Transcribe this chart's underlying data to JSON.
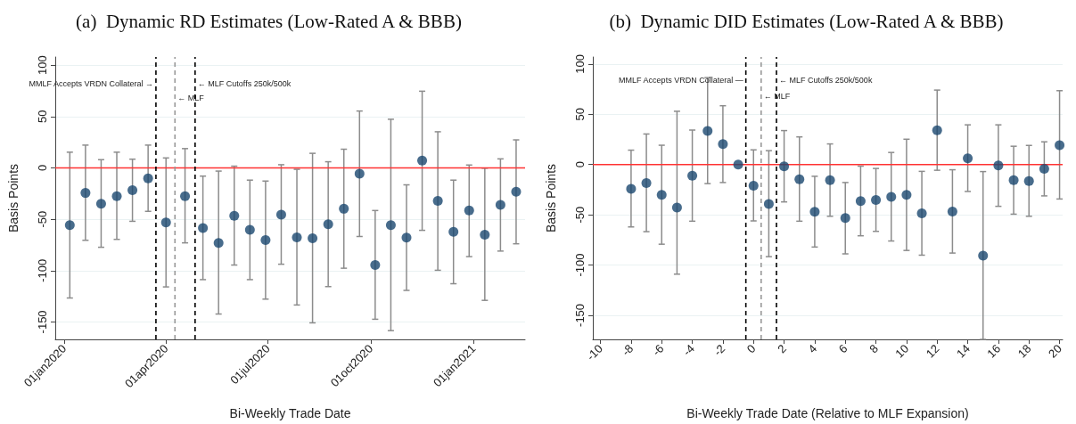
{
  "chart_data": [
    {
      "type": "scatter",
      "title": "(a)  Dynamic RD Estimates (Low-Rated A & BBB)",
      "xlabel": "Bi-Weekly Trade Date",
      "ylabel": "Basis Points",
      "x": [
        "2020-01-06",
        "2020-01-20",
        "2020-02-03",
        "2020-02-17",
        "2020-03-02",
        "2020-03-16",
        "2020-04-01",
        "2020-04-18",
        "2020-05-04",
        "2020-05-18",
        "2020-06-01",
        "2020-06-15",
        "2020-06-29",
        "2020-07-13",
        "2020-07-27",
        "2020-08-10",
        "2020-08-24",
        "2020-09-07",
        "2020-09-21",
        "2020-10-05",
        "2020-10-19",
        "2020-11-02",
        "2020-11-16",
        "2020-11-30",
        "2020-12-14",
        "2020-12-28",
        "2021-01-11",
        "2021-01-25",
        "2021-02-08"
      ],
      "series": [
        {
          "color": "#1a476f",
          "values": [
            -55.7,
            -24.4,
            -34.9,
            -27.6,
            -21.6,
            -10.2,
            -53.1,
            -27.6,
            -58.5,
            -73,
            -46.6,
            -60.2,
            -70.2,
            -45.5,
            -67.6,
            -68.5,
            -54.8,
            -39.8,
            -5.7,
            -94.6,
            -55.7,
            -67.9,
            7.1,
            -32.1,
            -62.2,
            -41.5,
            -65.1,
            -36.1,
            -23.3
          ],
          "errors": [
            [
              -126.7,
              15.3
            ],
            [
              -70.5,
              22.2
            ],
            [
              -77.3,
              8
            ],
            [
              -69.6,
              15.3
            ],
            [
              -52,
              8.5
            ],
            [
              -42.3,
              22.2
            ],
            [
              -115.9,
              9.7
            ],
            [
              -73,
              18.8
            ],
            [
              -108.8,
              -8
            ],
            [
              -142.3,
              -3.1
            ],
            [
              -94.6,
              1.7
            ],
            [
              -108.8,
              -11.9
            ],
            [
              -127.8,
              -12.8
            ],
            [
              -93.8,
              3.1
            ],
            [
              -133.5,
              -1.4
            ],
            [
              -150.9,
              14.2
            ],
            [
              -115.6,
              6
            ],
            [
              -97.7,
              18.2
            ],
            [
              -66.8,
              55.4
            ],
            [
              -147.4,
              -41.5
            ],
            [
              -158.5,
              47.4
            ],
            [
              -119.3,
              -16.5
            ],
            [
              -60.8,
              74.7
            ],
            [
              -99.7,
              35.2
            ],
            [
              -112.8,
              -11.9
            ],
            [
              -86.4,
              2.8
            ],
            [
              -129,
              -0.3
            ],
            [
              -81,
              8.8
            ],
            [
              -73.9,
              27.3
            ]
          ]
        }
      ],
      "xlim": [
        "2019-12-24",
        "2021-02-16"
      ],
      "xticks": [
        {
          "value": "2020-01-01",
          "label": "01jan2020"
        },
        {
          "value": "2020-04-01",
          "label": "01apr2020"
        },
        {
          "value": "2020-07-01",
          "label": "01jul2020"
        },
        {
          "value": "2020-10-01",
          "label": "01oct2020"
        },
        {
          "value": "2021-01-01",
          "label": "01jan2021"
        }
      ],
      "ylim": [
        -167,
        108
      ],
      "yticks": [
        -150,
        -100,
        -50,
        0,
        50,
        100
      ],
      "ref_lines": [
        {
          "axis": "y",
          "value": 0,
          "color": "#ff3333",
          "line_style": "solid"
        },
        {
          "axis": "x",
          "value": "2020-03-23",
          "label": "MMLF Accepts VRDN Collateral →",
          "color": "#000000",
          "line_style": "dashed"
        },
        {
          "axis": "x",
          "value": "2020-04-09",
          "label": "← MLF",
          "color": "#999999",
          "line_style": "dashed"
        },
        {
          "axis": "x",
          "value": "2020-04-27",
          "label": "← MLF Cutoffs 250k/500k",
          "color": "#000000",
          "line_style": "dashed"
        }
      ],
      "grid": "y",
      "marker": "circle"
    },
    {
      "type": "scatter",
      "title": "(b)  Dynamic DID Estimates (Low-Rated A & BBB)",
      "xlabel": "Bi-Weekly Trade Date (Relative to MLF Expansion)",
      "ylabel": "Basis Points",
      "x": [
        -8,
        -7,
        -6,
        -5,
        -4,
        -3,
        -2,
        -1,
        0,
        1,
        2,
        3,
        4,
        5,
        6,
        7,
        8,
        9,
        10,
        11,
        12,
        13,
        14,
        15,
        16,
        17,
        18,
        19,
        20
      ],
      "series": [
        {
          "color": "#1a476f",
          "values": [
            -24.2,
            -18.5,
            -30.1,
            -42.9,
            -11.2,
            33.5,
            20.3,
            0,
            -21,
            -39.2,
            -1.8,
            -14.6,
            -47,
            -15.6,
            -53.3,
            -36.4,
            -35.3,
            -32.2,
            -30.1,
            -48.6,
            34,
            -46.8,
            6.2,
            -90.7,
            -1,
            -15.6,
            -16.4,
            -4.2,
            19.2
          ],
          "errors": [
            [
              -62.1,
              14.3
            ],
            [
              -66.8,
              30.4
            ],
            [
              -79.3,
              19.2
            ],
            [
              -109.1,
              53
            ],
            [
              -56.4,
              34.3
            ],
            [
              -19,
              86.5
            ],
            [
              -17.9,
              58.5
            ],
            null,
            [
              -56.1,
              14.6
            ],
            [
              -91.7,
              13.8
            ],
            [
              -37.2,
              33.8
            ],
            [
              -56.4,
              27.5
            ],
            [
              -82.1,
              -11.7
            ],
            [
              -51.5,
              20.5
            ],
            [
              -88.9,
              -17.9
            ],
            [
              -70.9,
              -1.6
            ],
            [
              -66.5,
              -3.9
            ],
            [
              -76.1,
              12
            ],
            [
              -85.5,
              25.2
            ],
            [
              -90.2,
              -6.8
            ],
            [
              -5.7,
              74.1
            ],
            [
              -88.1,
              -5.2
            ],
            [
              -26.8,
              39.5
            ],
            [
              -174,
              -7
            ],
            [
              -41.6,
              39.5
            ],
            [
              -49.4,
              18.2
            ],
            [
              -51.5,
              19
            ],
            [
              -31.2,
              22.6
            ],
            [
              -34.3,
              73.5
            ]
          ]
        }
      ],
      "xlim": [
        -10.5,
        20.2
      ],
      "xticks": [
        -10,
        -8,
        -6,
        -4,
        -2,
        0,
        2,
        4,
        6,
        8,
        10,
        12,
        14,
        16,
        18,
        20
      ],
      "ylim": [
        -174,
        107
      ],
      "yticks": [
        -150,
        -100,
        -50,
        0,
        50,
        100
      ],
      "ref_lines": [
        {
          "axis": "y",
          "value": 0,
          "color": "#ff3333",
          "line_style": "solid"
        },
        {
          "axis": "x",
          "value": -0.5,
          "label": "MMLF Accepts VRDN Collateral —",
          "color": "#000000",
          "line_style": "dashed"
        },
        {
          "axis": "x",
          "value": 0.5,
          "label": "← MLF",
          "color": "#999999",
          "line_style": "dashed"
        },
        {
          "axis": "x",
          "value": 1.5,
          "label": "← MLF Cutoffs 250k/500k",
          "color": "#000000",
          "line_style": "dashed"
        }
      ],
      "grid": "y",
      "marker": "circle"
    }
  ]
}
